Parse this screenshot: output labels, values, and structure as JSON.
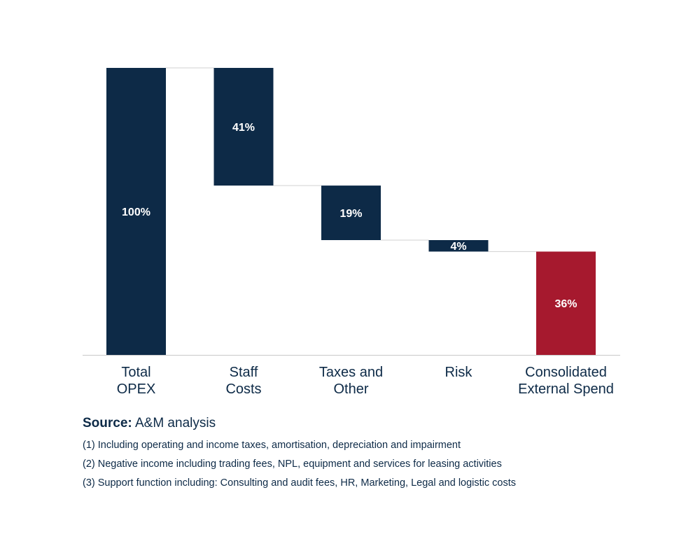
{
  "chart_data": {
    "type": "waterfall",
    "categories": [
      [
        "Total",
        "OPEX"
      ],
      [
        "Staff",
        "Costs"
      ],
      [
        "Taxes and",
        "Other"
      ],
      [
        "Risk"
      ],
      [
        "Consolidated",
        "External Spend"
      ]
    ],
    "values": [
      100,
      -41,
      -19,
      -4,
      36
    ],
    "value_labels": [
      "100%",
      "41%",
      "19%",
      "4%",
      "36%"
    ],
    "kinds": [
      "total",
      "decrease",
      "decrease",
      "decrease",
      "total"
    ],
    "ylim": [
      0,
      100
    ],
    "colors": {
      "bar": "#0d2a47",
      "final": "#a6192e",
      "connector": "#d0d0d0",
      "label": "#ffffff",
      "axis_text": "#0d2a47"
    }
  },
  "footer": {
    "source_label": "Source:",
    "source_text": " A&M analysis",
    "notes": [
      "(1) Including operating and income taxes, amortisation, depreciation and impairment",
      "(2) Negative income including trading fees, NPL, equipment and services for leasing activities",
      "(3) Support function including: Consulting and audit fees, HR, Marketing, Legal and logistic costs"
    ]
  }
}
